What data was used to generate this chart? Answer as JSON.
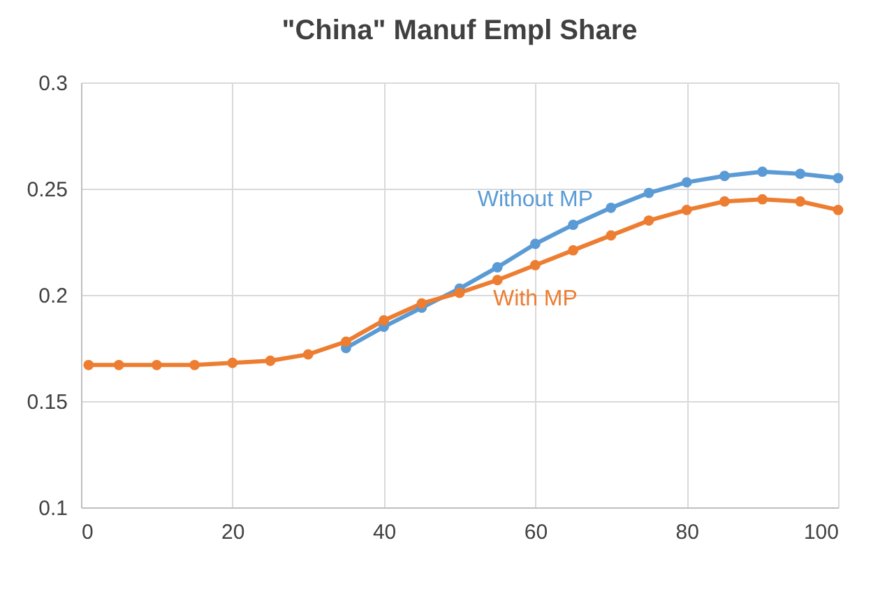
{
  "chart_data": {
    "type": "line",
    "title": "\"China\" Manuf Empl Share",
    "marker": "circle",
    "grid": true,
    "legend": false,
    "xlim": [
      0,
      100
    ],
    "xticks": [
      0,
      20,
      40,
      60,
      80,
      100
    ],
    "ylim": [
      0.1,
      0.3
    ],
    "yticks": [
      0.1,
      0.15,
      0.2,
      0.25,
      0.3
    ],
    "x": [
      1,
      5,
      10,
      15,
      20,
      25,
      30,
      35,
      40,
      45,
      50,
      55,
      60,
      65,
      70,
      75,
      80,
      85,
      90,
      95,
      100
    ],
    "series": [
      {
        "name": "Without MP",
        "color": "#5b9bd5",
        "values": [
          null,
          null,
          null,
          null,
          null,
          null,
          null,
          0.175,
          0.185,
          0.194,
          0.203,
          0.213,
          0.224,
          0.233,
          0.241,
          0.248,
          0.253,
          0.256,
          0.258,
          0.257,
          0.255
        ]
      },
      {
        "name": "With MP",
        "color": "#ed7d31",
        "values": [
          0.167,
          0.167,
          0.167,
          0.167,
          0.168,
          0.169,
          0.172,
          0.178,
          0.188,
          0.196,
          0.201,
          0.207,
          0.214,
          0.221,
          0.228,
          0.235,
          0.24,
          0.244,
          0.245,
          0.244,
          0.24
        ]
      }
    ]
  }
}
